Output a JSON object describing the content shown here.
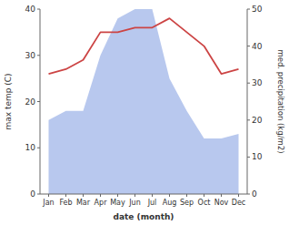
{
  "chart_data": {
    "type": "line",
    "xlabel": "date (month)",
    "ylabel": "max temp (C)",
    "y2label": "med. precipitation (kg/m2)",
    "categories": [
      "Jan",
      "Feb",
      "Mar",
      "Apr",
      "May",
      "Jun",
      "Jul",
      "Aug",
      "Sep",
      "Oct",
      "Nov",
      "Dec"
    ],
    "series": [
      {
        "type": "area",
        "color": "#b8c8ee",
        "values": [
          16,
          18,
          18,
          30,
          38,
          40,
          40,
          25,
          18,
          12,
          12,
          13
        ]
      },
      {
        "type": "line",
        "color": "#cc4444",
        "values": [
          26,
          27,
          29,
          35,
          35,
          36,
          36,
          38,
          35,
          32,
          26,
          27
        ]
      }
    ],
    "ylim": [
      0,
      40
    ],
    "yticks": [
      0,
      10,
      20,
      30,
      40
    ],
    "y2lim": [
      0,
      50
    ],
    "y2ticks": [
      0,
      10,
      20,
      30,
      40,
      50
    ],
    "grid": false
  }
}
